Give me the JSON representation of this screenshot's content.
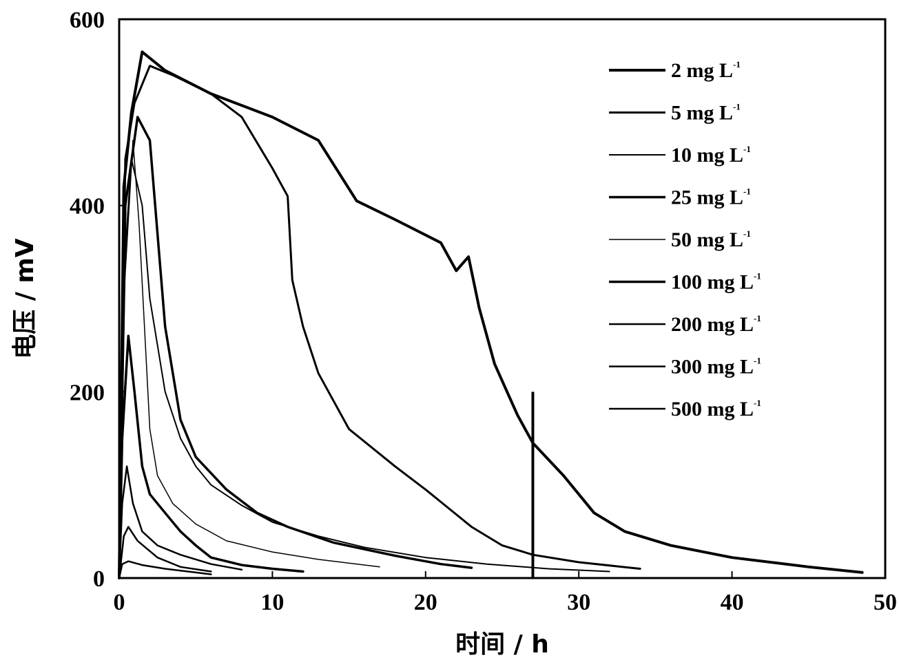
{
  "chart_data": {
    "type": "line",
    "xlabel": "时间 / h",
    "ylabel": "电压 / mV",
    "xlim": [
      0,
      50
    ],
    "ylim": [
      0,
      600
    ],
    "xticks": [
      "0",
      "10",
      "20",
      "30",
      "40",
      "50"
    ],
    "yticks": [
      "0",
      "200",
      "400",
      "600"
    ],
    "grid": false,
    "legend_position": "top-right",
    "line_color": "#000000",
    "series": [
      {
        "name": "2 mg L",
        "unit_sup": "-1",
        "stroke_width": 4,
        "points": [
          [
            0,
            0
          ],
          [
            0.3,
            420
          ],
          [
            0.8,
            500
          ],
          [
            1.5,
            565
          ],
          [
            3,
            545
          ],
          [
            6,
            520
          ],
          [
            10,
            495
          ],
          [
            13,
            470
          ],
          [
            15.5,
            405
          ],
          [
            18,
            385
          ],
          [
            21,
            360
          ],
          [
            22,
            330
          ],
          [
            22.8,
            345
          ],
          [
            23.5,
            290
          ],
          [
            24.5,
            230
          ],
          [
            26,
            175
          ],
          [
            27,
            145
          ],
          [
            29,
            110
          ],
          [
            31,
            70
          ],
          [
            33,
            50
          ],
          [
            36,
            35
          ],
          [
            40,
            22
          ],
          [
            45,
            12
          ],
          [
            48.5,
            6
          ]
        ]
      },
      {
        "name": "5 mg L",
        "unit_sup": "-1",
        "stroke_width": 3,
        "points": [
          [
            0,
            0
          ],
          [
            0.4,
            450
          ],
          [
            1,
            510
          ],
          [
            2,
            550
          ],
          [
            3.5,
            540
          ],
          [
            6,
            520
          ],
          [
            8,
            495
          ],
          [
            10,
            440
          ],
          [
            11,
            410
          ],
          [
            11.3,
            320
          ],
          [
            12,
            270
          ],
          [
            13,
            220
          ],
          [
            15,
            160
          ],
          [
            18,
            120
          ],
          [
            20,
            95
          ],
          [
            23,
            55
          ],
          [
            25,
            35
          ],
          [
            27,
            25
          ],
          [
            30,
            17
          ],
          [
            34,
            10
          ]
        ]
      },
      {
        "name": "10 mg L",
        "unit_sup": "-1",
        "stroke_width": 2,
        "points": [
          [
            0,
            0
          ],
          [
            0.4,
            350
          ],
          [
            0.8,
            450
          ],
          [
            1.5,
            400
          ],
          [
            2,
            300
          ],
          [
            3,
            200
          ],
          [
            4,
            150
          ],
          [
            5,
            120
          ],
          [
            6,
            100
          ],
          [
            8,
            78
          ],
          [
            10,
            60
          ],
          [
            13,
            45
          ],
          [
            16,
            33
          ],
          [
            20,
            22
          ],
          [
            24,
            15
          ],
          [
            28,
            10
          ],
          [
            32,
            7
          ]
        ]
      },
      {
        "name": "25 mg L",
        "unit_sup": "-1",
        "stroke_width": 3.5,
        "points": [
          [
            0,
            0
          ],
          [
            0.4,
            400
          ],
          [
            1.2,
            495
          ],
          [
            2,
            470
          ],
          [
            3,
            270
          ],
          [
            4,
            170
          ],
          [
            5,
            130
          ],
          [
            7,
            95
          ],
          [
            9,
            70
          ],
          [
            11,
            55
          ],
          [
            14,
            38
          ],
          [
            18,
            24
          ],
          [
            21,
            15
          ],
          [
            23,
            11
          ]
        ]
      },
      {
        "name": "50 mg L",
        "unit_sup": "-1",
        "stroke_width": 1.5,
        "points": [
          [
            0,
            0
          ],
          [
            0.3,
            300
          ],
          [
            0.9,
            470
          ],
          [
            1.3,
            380
          ],
          [
            2,
            160
          ],
          [
            2.5,
            110
          ],
          [
            3.5,
            80
          ],
          [
            5,
            58
          ],
          [
            7,
            40
          ],
          [
            10,
            28
          ],
          [
            13,
            20
          ],
          [
            17,
            12
          ]
        ]
      },
      {
        "name": "100 mg L",
        "unit_sup": "-1",
        "stroke_width": 3.5,
        "points": [
          [
            0,
            0
          ],
          [
            0.2,
            150
          ],
          [
            0.6,
            260
          ],
          [
            1,
            200
          ],
          [
            1.5,
            120
          ],
          [
            2,
            90
          ],
          [
            3,
            70
          ],
          [
            4,
            50
          ],
          [
            5,
            35
          ],
          [
            6,
            22
          ],
          [
            8,
            14
          ],
          [
            10,
            10
          ],
          [
            12,
            7
          ]
        ]
      },
      {
        "name": "200 mg L",
        "unit_sup": "-1",
        "stroke_width": 2.5,
        "points": [
          [
            0,
            0
          ],
          [
            0.2,
            80
          ],
          [
            0.5,
            120
          ],
          [
            0.9,
            80
          ],
          [
            1.5,
            50
          ],
          [
            2.5,
            35
          ],
          [
            4,
            25
          ],
          [
            6,
            15
          ],
          [
            8,
            9
          ]
        ]
      },
      {
        "name": "300 mg L",
        "unit_sup": "-1",
        "stroke_width": 2.5,
        "points": [
          [
            0,
            0
          ],
          [
            0.3,
            45
          ],
          [
            0.6,
            55
          ],
          [
            1.2,
            40
          ],
          [
            2.5,
            22
          ],
          [
            4,
            12
          ],
          [
            6,
            7
          ]
        ]
      },
      {
        "name": "500 mg L",
        "unit_sup": "-1",
        "stroke_width": 2.5,
        "points": [
          [
            0,
            0
          ],
          [
            0.2,
            15
          ],
          [
            0.6,
            18
          ],
          [
            1.5,
            14
          ],
          [
            3,
            10
          ],
          [
            5,
            6
          ],
          [
            6,
            4
          ]
        ]
      }
    ],
    "annotations": [
      {
        "type": "vertical_spike",
        "x": 27,
        "y_from": 0,
        "y_to": 200
      }
    ]
  }
}
